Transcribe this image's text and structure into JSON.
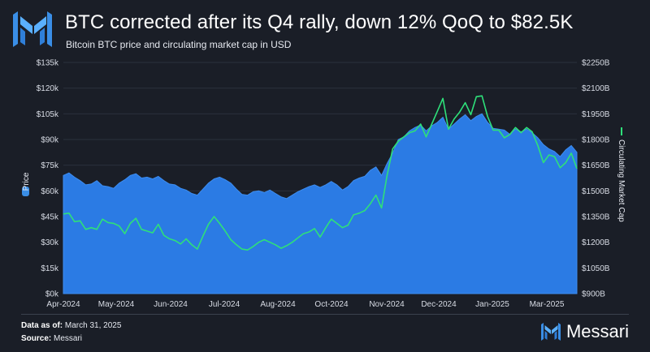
{
  "title": "BTC corrected after its Q4 rally, down 12% QoQ to $82.5K",
  "subtitle": "Bitcoin BTC price and circulating market cap in USD",
  "footer": {
    "data_as_of_label": "Data as of:",
    "data_as_of_value": "March 31, 2025",
    "source_label": "Source:",
    "source_value": "Messari"
  },
  "brand": {
    "name": "Messari"
  },
  "colors": {
    "background": "#1a1e27",
    "price_area": "#2b7be4",
    "market_cap_line": "#2ee07a",
    "brand_accent": "#3a8ee6"
  },
  "chart_data": {
    "type": "area",
    "x_ticks": [
      "Apr-2024",
      "May-2024",
      "Jun-2024",
      "Jul-2024",
      "Aug-2024",
      "Oct-2024",
      "Nov-2024",
      "Dec-2024",
      "Jan-2025",
      "Mar-2025"
    ],
    "y_left": {
      "label": "Price",
      "ylim": [
        0,
        135000
      ],
      "ticks": [
        "$0k",
        "$15k",
        "$30k",
        "$45k",
        "$60k",
        "$75k",
        "$90k",
        "$105k",
        "$120k",
        "$135k"
      ]
    },
    "y_right": {
      "label": "Circulating Market Cap",
      "ylim": [
        900,
        2250
      ],
      "ticks": [
        "$900B",
        "$1050B",
        "$1200B",
        "$1350B",
        "$1500B",
        "$1650B",
        "$1800B",
        "$1950B",
        "$2100B",
        "$2250B"
      ]
    },
    "legend": "axis-labels",
    "grid": true,
    "series": [
      {
        "name": "Price",
        "axis": "left",
        "style": "area",
        "values": [
          69000,
          70500,
          68000,
          66000,
          63500,
          64000,
          66000,
          63000,
          62500,
          61500,
          64500,
          66500,
          69000,
          70000,
          67500,
          68000,
          67000,
          68500,
          66000,
          64000,
          63500,
          61500,
          60500,
          58500,
          57500,
          61000,
          64500,
          67000,
          68000,
          66500,
          64500,
          61000,
          58000,
          57500,
          59500,
          60000,
          59000,
          60500,
          58500,
          56500,
          55500,
          57500,
          59500,
          61000,
          62500,
          63500,
          62000,
          63500,
          65500,
          63500,
          60500,
          62500,
          66000,
          67500,
          68500,
          72000,
          74000,
          69000,
          76000,
          82000,
          90000,
          91500,
          95000,
          97000,
          98500,
          95000,
          98000,
          100000,
          103000,
          96000,
          99000,
          102000,
          104500,
          101000,
          103500,
          105000,
          100000,
          96500,
          96000,
          95500,
          93000,
          96000,
          94500,
          96000,
          94000,
          91000,
          87000,
          84500,
          83000,
          80000,
          84000,
          86500,
          82500
        ]
      },
      {
        "name": "Circulating Market Cap",
        "axis": "right",
        "style": "line",
        "values": [
          1365,
          1370,
          1320,
          1325,
          1275,
          1285,
          1275,
          1335,
          1315,
          1310,
          1295,
          1250,
          1310,
          1340,
          1275,
          1265,
          1255,
          1305,
          1240,
          1220,
          1210,
          1190,
          1220,
          1185,
          1160,
          1235,
          1305,
          1350,
          1310,
          1265,
          1215,
          1185,
          1160,
          1155,
          1175,
          1200,
          1215,
          1200,
          1185,
          1165,
          1180,
          1200,
          1225,
          1250,
          1260,
          1280,
          1230,
          1285,
          1335,
          1310,
          1285,
          1300,
          1360,
          1370,
          1385,
          1425,
          1475,
          1400,
          1590,
          1745,
          1790,
          1815,
          1840,
          1850,
          1890,
          1815,
          1890,
          1965,
          2040,
          1860,
          1920,
          1960,
          2015,
          1945,
          2050,
          2055,
          1935,
          1855,
          1855,
          1810,
          1830,
          1870,
          1840,
          1870,
          1845,
          1765,
          1665,
          1710,
          1700,
          1635,
          1665,
          1720,
          1630
        ]
      }
    ]
  }
}
